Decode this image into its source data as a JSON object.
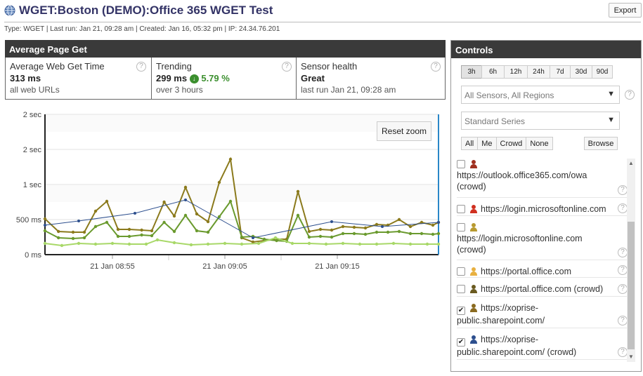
{
  "header": {
    "title": "WGET:Boston (DEMO):Office 365 WGET Test",
    "export_label": "Export",
    "meta": "Type: WGET | Last run: Jan 21, 09:28 am | Created: Jan 16, 05:32 pm | IP: 24.34.76.201"
  },
  "summary": {
    "title": "Average Page Get",
    "help_glyph": "?",
    "avg": {
      "label": "Average Web Get Time",
      "value": "313 ms",
      "sub": "all web URLs"
    },
    "trend": {
      "label": "Trending",
      "value": "299 ms",
      "pct": "5.79 %",
      "sub": "over 3 hours"
    },
    "health": {
      "label": "Sensor health",
      "value": "Great",
      "sub": "last run Jan 21, 09:28 am"
    }
  },
  "chart": {
    "reset_zoom_label": "Reset zoom"
  },
  "chart_data": {
    "type": "line",
    "y_tick_labels": [
      "2 sec",
      "2 sec",
      "1 sec",
      "500 ms",
      "0 ms"
    ],
    "y_ticks_ms": [
      2000,
      1500,
      1000,
      500,
      0
    ],
    "ylim": [
      0,
      2000
    ],
    "x_tick_labels": [
      "21 Jan 08:55",
      "21 Jan 09:05",
      "21 Jan 09:15"
    ],
    "x_tick_minutes": [
      555,
      565,
      575
    ],
    "xlim": [
      549,
      584
    ],
    "grid": true,
    "series": [
      {
        "color": "#8b7a1c",
        "x": [
          549,
          550.2,
          551.5,
          552.5,
          553.5,
          554.5,
          555.5,
          556.5,
          557.6,
          558.5,
          559.6,
          560.5,
          561.5,
          562.5,
          563.5,
          564.5,
          565.5,
          566.5,
          567.5,
          568.5,
          569.6,
          570.5,
          571.5,
          572.5,
          573.5,
          574.5,
          575.5,
          576.5,
          577.5,
          578.5,
          579.5,
          580.5,
          581.5,
          582.5,
          583.5,
          584
        ],
        "y": [
          510,
          330,
          320,
          320,
          620,
          760,
          360,
          360,
          350,
          340,
          750,
          550,
          960,
          580,
          470,
          1030,
          1360,
          240,
          180,
          200,
          220,
          220,
          900,
          330,
          360,
          350,
          400,
          390,
          380,
          430,
          420,
          500,
          400,
          460,
          420,
          460
        ]
      },
      {
        "color": "#6a9a2e",
        "x": [
          549,
          550.2,
          551.5,
          552.5,
          553.5,
          554.5,
          555.5,
          556.5,
          557.6,
          558.5,
          559.6,
          560.5,
          561.5,
          562.5,
          563.5,
          564.5,
          565.5,
          566.5,
          567.5,
          568.5,
          569.6,
          570.5,
          571.5,
          572.5,
          573.5,
          574.5,
          575.5,
          576.5,
          577.5,
          578.5,
          579.5,
          580.5,
          581.5,
          582.5,
          583.5,
          584
        ],
        "y": [
          340,
          240,
          230,
          240,
          400,
          460,
          260,
          260,
          280,
          270,
          460,
          330,
          560,
          340,
          320,
          540,
          760,
          250,
          260,
          220,
          200,
          190,
          560,
          250,
          260,
          250,
          300,
          300,
          290,
          320,
          320,
          330,
          300,
          300,
          290,
          300
        ]
      },
      {
        "color": "#a8d868",
        "x": [
          549,
          550.5,
          552,
          553.5,
          555,
          556.5,
          558,
          559,
          560.5,
          562,
          563.5,
          565,
          566.5,
          568,
          569.5,
          571,
          572.5,
          574,
          575.5,
          577,
          578.5,
          580,
          581.5,
          583,
          584
        ],
        "y": [
          160,
          130,
          160,
          150,
          160,
          150,
          150,
          210,
          170,
          140,
          150,
          160,
          150,
          160,
          240,
          160,
          160,
          150,
          160,
          150,
          150,
          160,
          150,
          150,
          150
        ]
      },
      {
        "color": "#2d4f8e",
        "x": [
          549,
          552,
          557,
          561.5,
          567.5,
          574.5,
          579,
          584
        ],
        "y": [
          420,
          480,
          590,
          780,
          240,
          470,
          400,
          460
        ]
      }
    ]
  },
  "controls": {
    "title": "Controls",
    "help_glyph": "?",
    "ranges": [
      "3h",
      "6h",
      "12h",
      "24h",
      "7d",
      "30d",
      "90d"
    ],
    "sensor_select": "All Sensors, All Regions",
    "series_select": "Standard Series",
    "filters": [
      "All",
      "Me",
      "Crowd",
      "None"
    ],
    "browse_label": "Browse",
    "check_glyph": "✔",
    "sensors": [
      {
        "line1": "",
        "line2": "https://outlook.office365.com/owa",
        "line3": "(crowd)",
        "checked": false,
        "icon": "#a03020"
      },
      {
        "line1": "https://login.microsoftonline.com",
        "line2": "",
        "line3": "",
        "checked": false,
        "icon": "#d03020"
      },
      {
        "line1": "",
        "line2": "https://login.microsoftonline.com",
        "line3": "(crowd)",
        "checked": false,
        "icon": "#b89a30"
      },
      {
        "line1": "https://portal.office.com",
        "line2": "",
        "line3": "",
        "checked": false,
        "icon": "#e8b040"
      },
      {
        "line1": "https://portal.office.com (crowd)",
        "line2": "",
        "line3": "",
        "checked": false,
        "icon": "#6a5a20"
      },
      {
        "line1": "https://xoprise-",
        "line2": "public.sharepoint.com/",
        "line3": "",
        "checked": true,
        "icon": "#8a6a20"
      },
      {
        "line1": "https://xoprise-",
        "line2": "public.sharepoint.com/ (crowd)",
        "line3": "",
        "checked": true,
        "icon": "#2d4f8e"
      }
    ]
  }
}
